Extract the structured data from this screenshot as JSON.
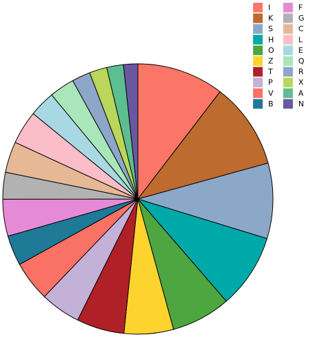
{
  "chart_data": {
    "type": "pie",
    "categories": [
      "I",
      "K",
      "S",
      "H",
      "O",
      "Z",
      "T",
      "P",
      "V",
      "B",
      "F",
      "G",
      "C",
      "L",
      "E",
      "Q",
      "R",
      "X",
      "A",
      "N"
    ],
    "values": [
      10.4,
      10.3,
      9.0,
      8.9,
      7.1,
      5.9,
      5.7,
      4.8,
      4.8,
      3.6,
      4.4,
      3.2,
      3.7,
      4.0,
      3.1,
      3.0,
      2.2,
      2.1,
      2.0,
      1.7
    ],
    "colors": [
      "#fb7666",
      "#bd6b2e",
      "#8ca8c8",
      "#00a9a9",
      "#4da63f",
      "#fdd42e",
      "#b02127",
      "#c3b1d8",
      "#fa7165",
      "#1f7a98",
      "#e58bd6",
      "#b2b2b2",
      "#e6b896",
      "#fbbec8",
      "#a8d8e3",
      "#a9e6b9",
      "#8ea6c7",
      "#bad75b",
      "#5cbe91",
      "#6b57a0"
    ],
    "legend": "top-right"
  }
}
